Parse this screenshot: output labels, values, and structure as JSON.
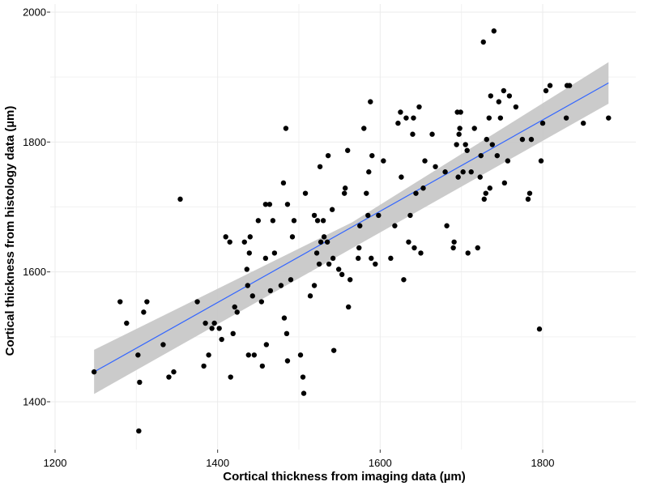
{
  "chart_data": {
    "type": "scatter",
    "title": "",
    "xlabel": "Cortical thickness from imaging data (µm)",
    "ylabel": "Cortical thickness from histology data (µm)",
    "xlim": [
      1200,
      1900
    ],
    "ylim": [
      1330,
      2000
    ],
    "xticks": [
      1200,
      1400,
      1600,
      1800
    ],
    "yticks": [
      1400,
      1600,
      1800,
      2000
    ],
    "x_minor": [
      1300,
      1500,
      1700
    ],
    "y_minor": [
      1500,
      1700,
      1900
    ],
    "grid": true,
    "point_color": "#000000",
    "fit_line": {
      "color": "#3366FF",
      "x": [
        1248,
        1881
      ],
      "y": [
        1446,
        1891
      ]
    },
    "confidence_band": {
      "color": "#C8C8C8",
      "x": [
        1248,
        1565,
        1881
      ],
      "upper": [
        1480,
        1676,
        1923
      ],
      "lower": [
        1412,
        1636,
        1859
      ]
    },
    "series": [
      {
        "points": [
          [
            1248,
            1446
          ],
          [
            1280,
            1554
          ],
          [
            1288,
            1521
          ],
          [
            1302,
            1472
          ],
          [
            1303,
            1355
          ],
          [
            1304,
            1430
          ],
          [
            1309,
            1538
          ],
          [
            1313,
            1554
          ],
          [
            1333,
            1488
          ],
          [
            1340,
            1438
          ],
          [
            1346,
            1446
          ],
          [
            1354,
            1712
          ],
          [
            1375,
            1554
          ],
          [
            1383,
            1455
          ],
          [
            1385,
            1521
          ],
          [
            1389,
            1472
          ],
          [
            1393,
            1513
          ],
          [
            1396,
            1521
          ],
          [
            1402,
            1513
          ],
          [
            1405,
            1496
          ],
          [
            1410,
            1654
          ],
          [
            1415,
            1646
          ],
          [
            1416,
            1438
          ],
          [
            1419,
            1505
          ],
          [
            1421,
            1546
          ],
          [
            1424,
            1538
          ],
          [
            1433,
            1646
          ],
          [
            1436,
            1604
          ],
          [
            1437,
            1579
          ],
          [
            1438,
            1472
          ],
          [
            1439,
            1629
          ],
          [
            1440,
            1654
          ],
          [
            1443,
            1563
          ],
          [
            1445,
            1472
          ],
          [
            1450,
            1679
          ],
          [
            1454,
            1554
          ],
          [
            1455,
            1455
          ],
          [
            1459,
            1704
          ],
          [
            1459,
            1621
          ],
          [
            1460,
            1488
          ],
          [
            1464,
            1704
          ],
          [
            1465,
            1571
          ],
          [
            1468,
            1679
          ],
          [
            1470,
            1629
          ],
          [
            1478,
            1579
          ],
          [
            1481,
            1737
          ],
          [
            1482,
            1529
          ],
          [
            1484,
            1821
          ],
          [
            1485,
            1505
          ],
          [
            1486,
            1463
          ],
          [
            1486,
            1704
          ],
          [
            1490,
            1588
          ],
          [
            1492,
            1654
          ],
          [
            1494,
            1679
          ],
          [
            1502,
            1472
          ],
          [
            1505,
            1438
          ],
          [
            1506,
            1413
          ],
          [
            1508,
            1721
          ],
          [
            1514,
            1563
          ],
          [
            1519,
            1687
          ],
          [
            1519,
            1579
          ],
          [
            1522,
            1629
          ],
          [
            1523,
            1679
          ],
          [
            1525,
            1612
          ],
          [
            1526,
            1762
          ],
          [
            1527,
            1646
          ],
          [
            1530,
            1679
          ],
          [
            1531,
            1654
          ],
          [
            1535,
            1646
          ],
          [
            1536,
            1779
          ],
          [
            1537,
            1612
          ],
          [
            1541,
            1696
          ],
          [
            1542,
            1621
          ],
          [
            1543,
            1479
          ],
          [
            1549,
            1604
          ],
          [
            1553,
            1596
          ],
          [
            1556,
            1721
          ],
          [
            1557,
            1729
          ],
          [
            1560,
            1787
          ],
          [
            1561,
            1546
          ],
          [
            1563,
            1588
          ],
          [
            1573,
            1621
          ],
          [
            1574,
            1637
          ],
          [
            1575,
            1671
          ],
          [
            1580,
            1821
          ],
          [
            1583,
            1721
          ],
          [
            1585,
            1687
          ],
          [
            1586,
            1754
          ],
          [
            1588,
            1862
          ],
          [
            1589,
            1621
          ],
          [
            1590,
            1779
          ],
          [
            1594,
            1612
          ],
          [
            1598,
            1687
          ],
          [
            1604,
            1771
          ],
          [
            1613,
            1621
          ],
          [
            1618,
            1671
          ],
          [
            1622,
            1829
          ],
          [
            1625,
            1846
          ],
          [
            1626,
            1746
          ],
          [
            1629,
            1588
          ],
          [
            1632,
            1837
          ],
          [
            1635,
            1646
          ],
          [
            1637,
            1687
          ],
          [
            1640,
            1812
          ],
          [
            1641,
            1837
          ],
          [
            1642,
            1637
          ],
          [
            1644,
            1721
          ],
          [
            1648,
            1854
          ],
          [
            1650,
            1629
          ],
          [
            1653,
            1729
          ],
          [
            1655,
            1771
          ],
          [
            1664,
            1812
          ],
          [
            1668,
            1762
          ],
          [
            1680,
            1754
          ],
          [
            1682,
            1671
          ],
          [
            1690,
            1637
          ],
          [
            1691,
            1646
          ],
          [
            1694,
            1796
          ],
          [
            1695,
            1846
          ],
          [
            1696,
            1746
          ],
          [
            1697,
            1812
          ],
          [
            1698,
            1821
          ],
          [
            1699,
            1846
          ],
          [
            1702,
            1754
          ],
          [
            1705,
            1796
          ],
          [
            1707,
            1787
          ],
          [
            1708,
            1629
          ],
          [
            1712,
            1754
          ],
          [
            1716,
            1821
          ],
          [
            1720,
            1637
          ],
          [
            1723,
            1746
          ],
          [
            1724,
            1779
          ],
          [
            1727,
            1954
          ],
          [
            1728,
            1712
          ],
          [
            1730,
            1721
          ],
          [
            1731,
            1804
          ],
          [
            1734,
            1837
          ],
          [
            1735,
            1729
          ],
          [
            1736,
            1871
          ],
          [
            1738,
            1796
          ],
          [
            1740,
            1971
          ],
          [
            1744,
            1779
          ],
          [
            1746,
            1862
          ],
          [
            1748,
            1837
          ],
          [
            1752,
            1879
          ],
          [
            1753,
            1737
          ],
          [
            1757,
            1771
          ],
          [
            1759,
            1871
          ],
          [
            1767,
            1854
          ],
          [
            1775,
            1804
          ],
          [
            1782,
            1712
          ],
          [
            1784,
            1721
          ],
          [
            1786,
            1804
          ],
          [
            1796,
            1512
          ],
          [
            1798,
            1771
          ],
          [
            1800,
            1829
          ],
          [
            1804,
            1879
          ],
          [
            1809,
            1887
          ],
          [
            1829,
            1837
          ],
          [
            1830,
            1887
          ],
          [
            1833,
            1887
          ],
          [
            1850,
            1829
          ],
          [
            1881,
            1837
          ]
        ]
      }
    ]
  }
}
